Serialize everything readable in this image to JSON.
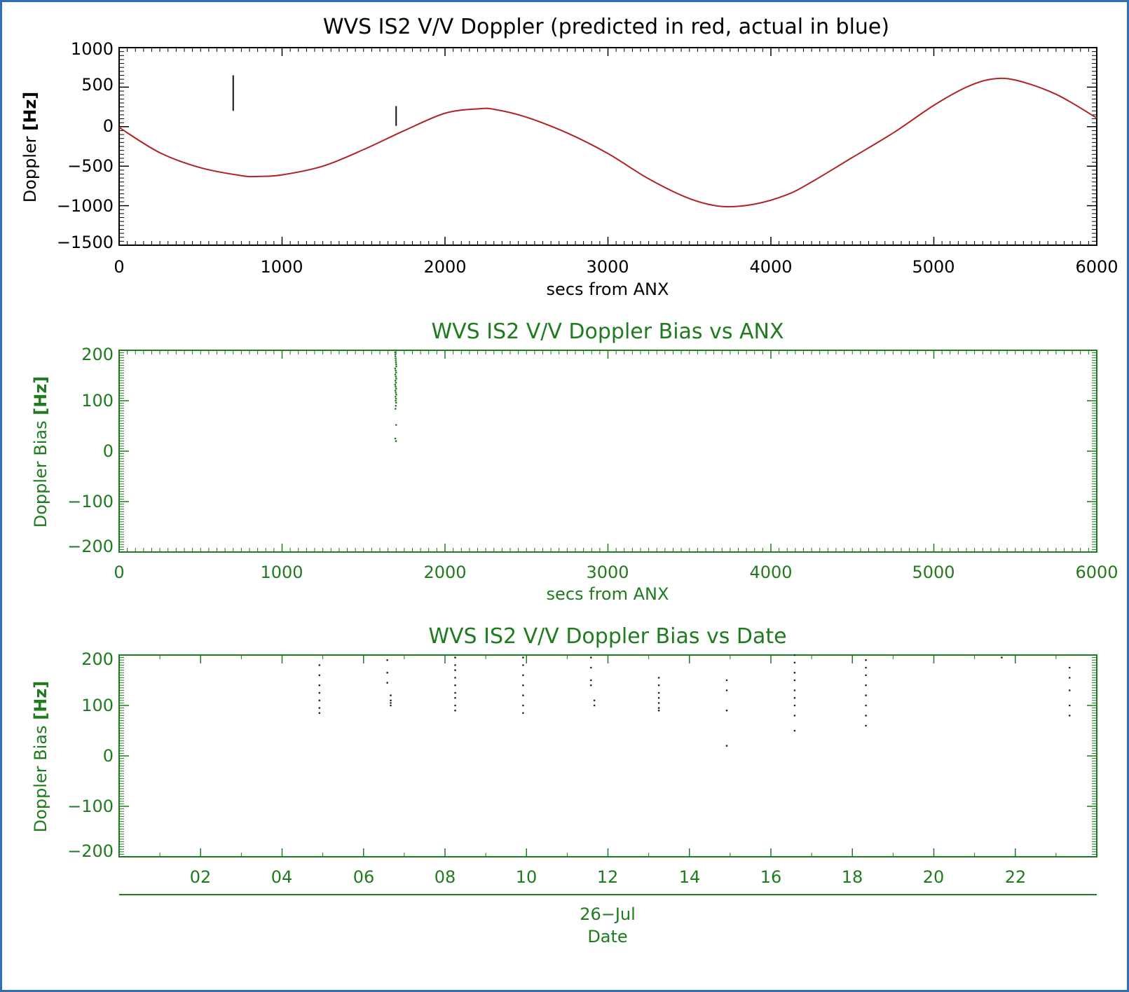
{
  "chart_data": [
    {
      "type": "line",
      "title": "WVS IS2 V/V Doppler (predicted in red, actual in blue)",
      "xlabel": "secs from ANX",
      "ylabel_main": "Doppler ",
      "ylabel_unit": "[Hz]",
      "xlim": [
        0,
        6000
      ],
      "ylim": [
        -1500,
        1000
      ],
      "xticks": [
        "0",
        "1000",
        "2000",
        "3000",
        "4000",
        "5000",
        "6000"
      ],
      "yticks": [
        "1000",
        "500",
        "0",
        "−500",
        "−1000",
        "−1500"
      ],
      "series": [
        {
          "name": "predicted",
          "color": "#b22222",
          "x": [
            0,
            250,
            500,
            750,
            850,
            1000,
            1250,
            1500,
            1750,
            2000,
            2200,
            2300,
            2500,
            2750,
            3000,
            3250,
            3500,
            3700,
            3900,
            4100,
            4250,
            4500,
            4750,
            5000,
            5200,
            5350,
            5500,
            5750,
            6000
          ],
          "y": [
            -10,
            -330,
            -520,
            -620,
            -630,
            -610,
            -500,
            -290,
            -50,
            170,
            225,
            220,
            120,
            -80,
            -340,
            -660,
            -910,
            -1010,
            -980,
            -860,
            -700,
            -390,
            -80,
            270,
            500,
            600,
            590,
            410,
            110
          ]
        },
        {
          "name": "actual",
          "color": "#111111",
          "segments": [
            {
              "x": 700,
              "y1": 200,
              "y2": 650
            },
            {
              "x": 1700,
              "y1": 10,
              "y2": 260
            }
          ]
        }
      ],
      "text_color": "#000000"
    },
    {
      "type": "scatter",
      "title": "WVS IS2 V/V Doppler Bias vs ANX",
      "xlabel": "secs from ANX",
      "ylabel_main": "Doppler Bias ",
      "ylabel_unit": "[Hz]",
      "xlim": [
        0,
        6000
      ],
      "ylim": [
        -200,
        200
      ],
      "xticks": [
        "0",
        "1000",
        "2000",
        "3000",
        "4000",
        "5000",
        "6000"
      ],
      "yticks": [
        "200",
        "100",
        "0",
        "−100",
        "−200"
      ],
      "points": {
        "x": [
          1693,
          1694,
          1695,
          1696,
          1697,
          1698,
          1699,
          1700,
          1701,
          1694,
          1697,
          1700,
          1695,
          1698,
          1701,
          1696,
          1699,
          1694,
          1697,
          1700,
          1695,
          1698,
          1701,
          1696,
          1699,
          1697,
          1700,
          1698,
          1696,
          1700,
          1695,
          1699
        ],
        "y": [
          200,
          196,
          192,
          188,
          184,
          180,
          176,
          172,
          168,
          164,
          160,
          156,
          152,
          148,
          144,
          140,
          136,
          132,
          128,
          124,
          120,
          116,
          112,
          108,
          104,
          100,
          96,
          90,
          84,
          52,
          25,
          20
        ]
      },
      "color": "#1e7b1e",
      "text_color": "#1e7b1e"
    },
    {
      "type": "scatter",
      "title": "WVS IS2 V/V Doppler Bias vs Date",
      "xlabel": "Date",
      "date_label": "26−Jul",
      "ylabel_main": "Doppler Bias ",
      "ylabel_unit": "[Hz]",
      "xlim": [
        "26-Jul 00:00",
        "27-Jul 00:00"
      ],
      "ylim": [
        -200,
        200
      ],
      "xticks": [
        "02",
        "04",
        "06",
        "08",
        "10",
        "12",
        "14",
        "16",
        "18",
        "20",
        "22"
      ],
      "yticks": [
        "200",
        "100",
        "0",
        "−100",
        "−200"
      ],
      "points": {
        "x": [
          "26-Jul 04:55",
          "26-Jul 04:55",
          "26-Jul 04:55",
          "26-Jul 04:55",
          "26-Jul 04:55",
          "26-Jul 04:55",
          "26-Jul 04:55",
          "26-Jul 06:35",
          "26-Jul 06:35",
          "26-Jul 06:35",
          "26-Jul 06:40",
          "26-Jul 06:40",
          "26-Jul 06:40",
          "26-Jul 06:40",
          "26-Jul 08:15",
          "26-Jul 08:15",
          "26-Jul 08:15",
          "26-Jul 08:15",
          "26-Jul 08:15",
          "26-Jul 08:15",
          "26-Jul 08:15",
          "26-Jul 08:15",
          "26-Jul 08:15",
          "26-Jul 09:55",
          "26-Jul 09:55",
          "26-Jul 09:55",
          "26-Jul 09:55",
          "26-Jul 09:55",
          "26-Jul 09:55",
          "26-Jul 09:55",
          "26-Jul 11:35",
          "26-Jul 11:35",
          "26-Jul 11:35",
          "26-Jul 11:35",
          "26-Jul 11:40",
          "26-Jul 11:40",
          "26-Jul 13:15",
          "26-Jul 13:15",
          "26-Jul 13:15",
          "26-Jul 13:15",
          "26-Jul 13:15",
          "26-Jul 13:15",
          "26-Jul 13:15",
          "26-Jul 14:55",
          "26-Jul 14:55",
          "26-Jul 14:55",
          "26-Jul 14:55",
          "26-Jul 16:35",
          "26-Jul 16:35",
          "26-Jul 16:35",
          "26-Jul 16:35",
          "26-Jul 16:35",
          "26-Jul 16:35",
          "26-Jul 16:35",
          "26-Jul 16:35",
          "26-Jul 16:35",
          "26-Jul 18:20",
          "26-Jul 18:20",
          "26-Jul 18:20",
          "26-Jul 18:20",
          "26-Jul 18:20",
          "26-Jul 18:20",
          "26-Jul 18:20",
          "26-Jul 18:20",
          "26-Jul 21:40",
          "26-Jul 23:20",
          "26-Jul 23:20",
          "26-Jul 23:20",
          "26-Jul 23:20",
          "26-Jul 23:20"
        ],
        "y": [
          180,
          160,
          140,
          125,
          110,
          95,
          85,
          190,
          165,
          145,
          120,
          110,
          105,
          100,
          195,
          180,
          170,
          155,
          140,
          125,
          115,
          100,
          90,
          195,
          180,
          160,
          140,
          120,
          100,
          85,
          195,
          175,
          150,
          140,
          110,
          100,
          155,
          140,
          125,
          115,
          105,
          95,
          90,
          150,
          130,
          90,
          20,
          200,
          185,
          165,
          150,
          130,
          115,
          100,
          80,
          50,
          190,
          175,
          160,
          140,
          120,
          100,
          80,
          60,
          195,
          175,
          155,
          130,
          100,
          80
        ]
      },
      "color": "#1e7b1e",
      "text_color": "#1e7b1e"
    }
  ]
}
